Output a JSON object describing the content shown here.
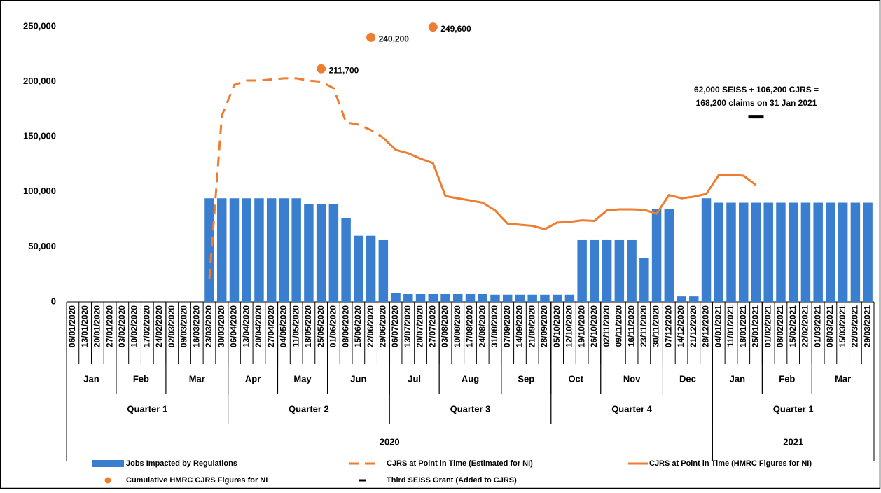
{
  "chart_data": {
    "type": "combo",
    "categories": [
      "06/01/2020",
      "13/01/2020",
      "20/01/2020",
      "27/01/2020",
      "03/02/2020",
      "10/02/2020",
      "17/02/2020",
      "24/02/2020",
      "02/03/2020",
      "09/03/2020",
      "16/03/2020",
      "23/03/2020",
      "30/03/2020",
      "06/04/2020",
      "13/04/2020",
      "20/04/2020",
      "27/04/2020",
      "04/05/2020",
      "11/05/2020",
      "18/05/2020",
      "25/05/2020",
      "01/06/2020",
      "08/06/2020",
      "15/06/2020",
      "22/06/2020",
      "29/06/2020",
      "06/07/2020",
      "13/07/2020",
      "20/07/2020",
      "27/07/2020",
      "03/08/2020",
      "10/08/2020",
      "17/08/2020",
      "24/08/2020",
      "31/08/2020",
      "07/09/2020",
      "14/09/2020",
      "21/09/2020",
      "28/09/2020",
      "05/10/2020",
      "12/10/2020",
      "19/10/2020",
      "26/10/2020",
      "02/11/2020",
      "09/11/2020",
      "16/11/2020",
      "23/11/2020",
      "30/11/2020",
      "07/12/2020",
      "14/12/2020",
      "21/12/2020",
      "28/12/2020",
      "04/01/2021",
      "11/01/2021",
      "18/01/2021",
      "25/01/2021",
      "01/02/2021",
      "08/02/2021",
      "15/02/2021",
      "22/02/2021",
      "01/03/2021",
      "08/03/2021",
      "15/03/2021",
      "22/03/2021",
      "29/03/2021"
    ],
    "months": [
      "Jan",
      "Feb",
      "Mar",
      "Apr",
      "May",
      "Jun",
      "Jul",
      "Aug",
      "Sep",
      "Oct",
      "Nov",
      "Dec",
      "Jan",
      "Feb",
      "Mar"
    ],
    "quarters": [
      "Quarter 1",
      "Quarter 2",
      "Quarter 3",
      "Quarter 4",
      "Quarter 1"
    ],
    "years": [
      "2020",
      "2021"
    ],
    "ylim": [
      0,
      250000
    ],
    "yticks": [
      0,
      {
        "value": 50000,
        "label": "50,000"
      },
      {
        "value": 100000,
        "label": "100,000"
      },
      {
        "value": 150000,
        "label": "150,000"
      },
      {
        "value": 200000,
        "label": "200,000"
      },
      {
        "value": 250000,
        "label": "250,000"
      }
    ],
    "grid": false,
    "legend": "bottom",
    "annotation": [
      "62,000 SEISS + 106,200 CJRS =",
      "168,200 claims on 31 Jan 2021"
    ],
    "annotation_color": "#ff0000",
    "series": [
      {
        "name": "Jobs Impacted by Regulations",
        "type": "bar",
        "color": "#3a7fcf",
        "values": [
          null,
          null,
          null,
          null,
          null,
          null,
          null,
          null,
          null,
          null,
          null,
          94000,
          94000,
          94000,
          94000,
          94000,
          94000,
          94000,
          94000,
          89000,
          89000,
          89000,
          76000,
          60000,
          60000,
          56000,
          8000,
          7000,
          7000,
          7000,
          7000,
          7000,
          7000,
          7000,
          6500,
          6500,
          6500,
          6500,
          6500,
          6500,
          6500,
          56000,
          56000,
          56000,
          56000,
          56000,
          40000,
          84000,
          84000,
          5000,
          5000,
          94000,
          90000,
          90000,
          90000,
          90000,
          90000,
          90000,
          90000,
          90000,
          90000,
          90000,
          90000,
          90000,
          90000
        ]
      },
      {
        "name": "CJRS at Point in Time (Estimated for NI)",
        "type": "line",
        "dashed": true,
        "color": "#ed7d31",
        "values": [
          null,
          null,
          null,
          null,
          null,
          null,
          null,
          null,
          null,
          null,
          null,
          21000,
          169000,
          197000,
          201000,
          201000,
          202000,
          203000,
          203000,
          201000,
          200000,
          194000,
          163000,
          161000,
          156000,
          149000,
          null,
          null,
          null,
          null,
          null,
          null,
          null,
          null,
          null,
          null,
          null,
          null,
          null,
          null,
          null,
          null,
          null,
          null,
          null,
          null,
          null,
          null,
          null,
          null,
          null,
          null,
          null,
          null,
          null,
          null,
          null,
          null,
          null,
          null,
          null,
          null,
          null,
          null,
          null
        ]
      },
      {
        "name": "CJRS at Point in Time (HMRC Figures for NI)",
        "type": "line",
        "dashed": false,
        "color": "#ed7d31",
        "values": [
          null,
          null,
          null,
          null,
          null,
          null,
          null,
          null,
          null,
          null,
          null,
          null,
          null,
          null,
          null,
          null,
          null,
          null,
          null,
          null,
          null,
          null,
          null,
          null,
          null,
          149000,
          138000,
          135000,
          130000,
          126000,
          96000,
          94000,
          92000,
          90000,
          83000,
          71000,
          70000,
          69000,
          66000,
          72000,
          72500,
          74000,
          73500,
          83000,
          84000,
          84000,
          83500,
          80000,
          97000,
          94000,
          95500,
          98000,
          115000,
          115500,
          114500,
          106000,
          null,
          null,
          null,
          null,
          null,
          null,
          null,
          null,
          null
        ]
      },
      {
        "name": "Cumulative HMRC CJRS Figures for NI",
        "type": "scatter",
        "color": "#ed7d31",
        "values": [
          null,
          null,
          null,
          null,
          null,
          null,
          null,
          null,
          null,
          null,
          null,
          null,
          null,
          null,
          null,
          null,
          null,
          null,
          null,
          null,
          211700,
          null,
          null,
          null,
          240200,
          null,
          null,
          null,
          null,
          249600,
          null,
          null,
          null,
          null,
          null,
          null,
          null,
          null,
          null,
          null,
          null,
          null,
          null,
          null,
          null,
          null,
          null,
          null,
          null,
          null,
          null,
          null,
          null,
          null,
          null,
          null,
          null,
          null,
          null,
          null,
          null,
          null,
          null,
          null,
          null
        ],
        "value_labels": [
          null,
          null,
          null,
          null,
          null,
          null,
          null,
          null,
          null,
          null,
          null,
          null,
          null,
          null,
          null,
          null,
          null,
          null,
          null,
          null,
          "211,700",
          null,
          null,
          null,
          "240,200",
          null,
          null,
          null,
          null,
          "249,600",
          null,
          null,
          null,
          null,
          null,
          null,
          null,
          null,
          null,
          null,
          null,
          null,
          null,
          null,
          null,
          null,
          null,
          null,
          null,
          null,
          null,
          null,
          null,
          null,
          null,
          null,
          null,
          null,
          null,
          null,
          null,
          null,
          null,
          null,
          null
        ]
      },
      {
        "name": "Third SEISS Grant (Added to CJRS)",
        "type": "marker",
        "color": "#000000",
        "values": [
          null,
          null,
          null,
          null,
          null,
          null,
          null,
          null,
          null,
          null,
          null,
          null,
          null,
          null,
          null,
          null,
          null,
          null,
          null,
          null,
          null,
          null,
          null,
          null,
          null,
          null,
          null,
          null,
          null,
          null,
          null,
          null,
          null,
          null,
          null,
          null,
          null,
          null,
          null,
          null,
          null,
          null,
          null,
          null,
          null,
          null,
          null,
          null,
          null,
          null,
          null,
          null,
          null,
          null,
          null,
          168200,
          null,
          null,
          null,
          null,
          null,
          null,
          null,
          null,
          null
        ]
      }
    ]
  }
}
